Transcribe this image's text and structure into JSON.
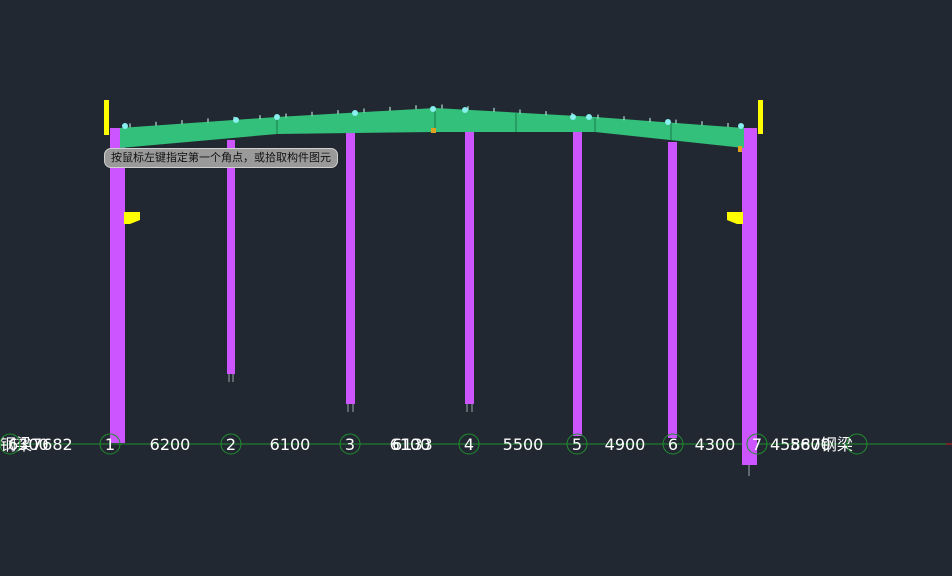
{
  "prompt": {
    "text": "按鼠标左键指定第一个角点，或拾取构件图元"
  },
  "axis": {
    "grids": [
      "1",
      "2",
      "3",
      "4",
      "5",
      "6",
      "7"
    ],
    "spans": [
      "6200",
      "6100",
      "6100",
      "5500",
      "4900",
      "4300"
    ],
    "left_overlap_text": "钢梁7682",
    "left_overlap_text2": "6300",
    "overlap_span_text": "6133",
    "right_overlap_text": "45887钢梁",
    "right_overlap_text2": "5600"
  },
  "colors": {
    "background": "#222831",
    "column": "#cc55ff",
    "rafter": "#33c07a",
    "axis_line": "#1f8f2e",
    "bracket": "#ffff00",
    "purlin": "#88eeee"
  }
}
